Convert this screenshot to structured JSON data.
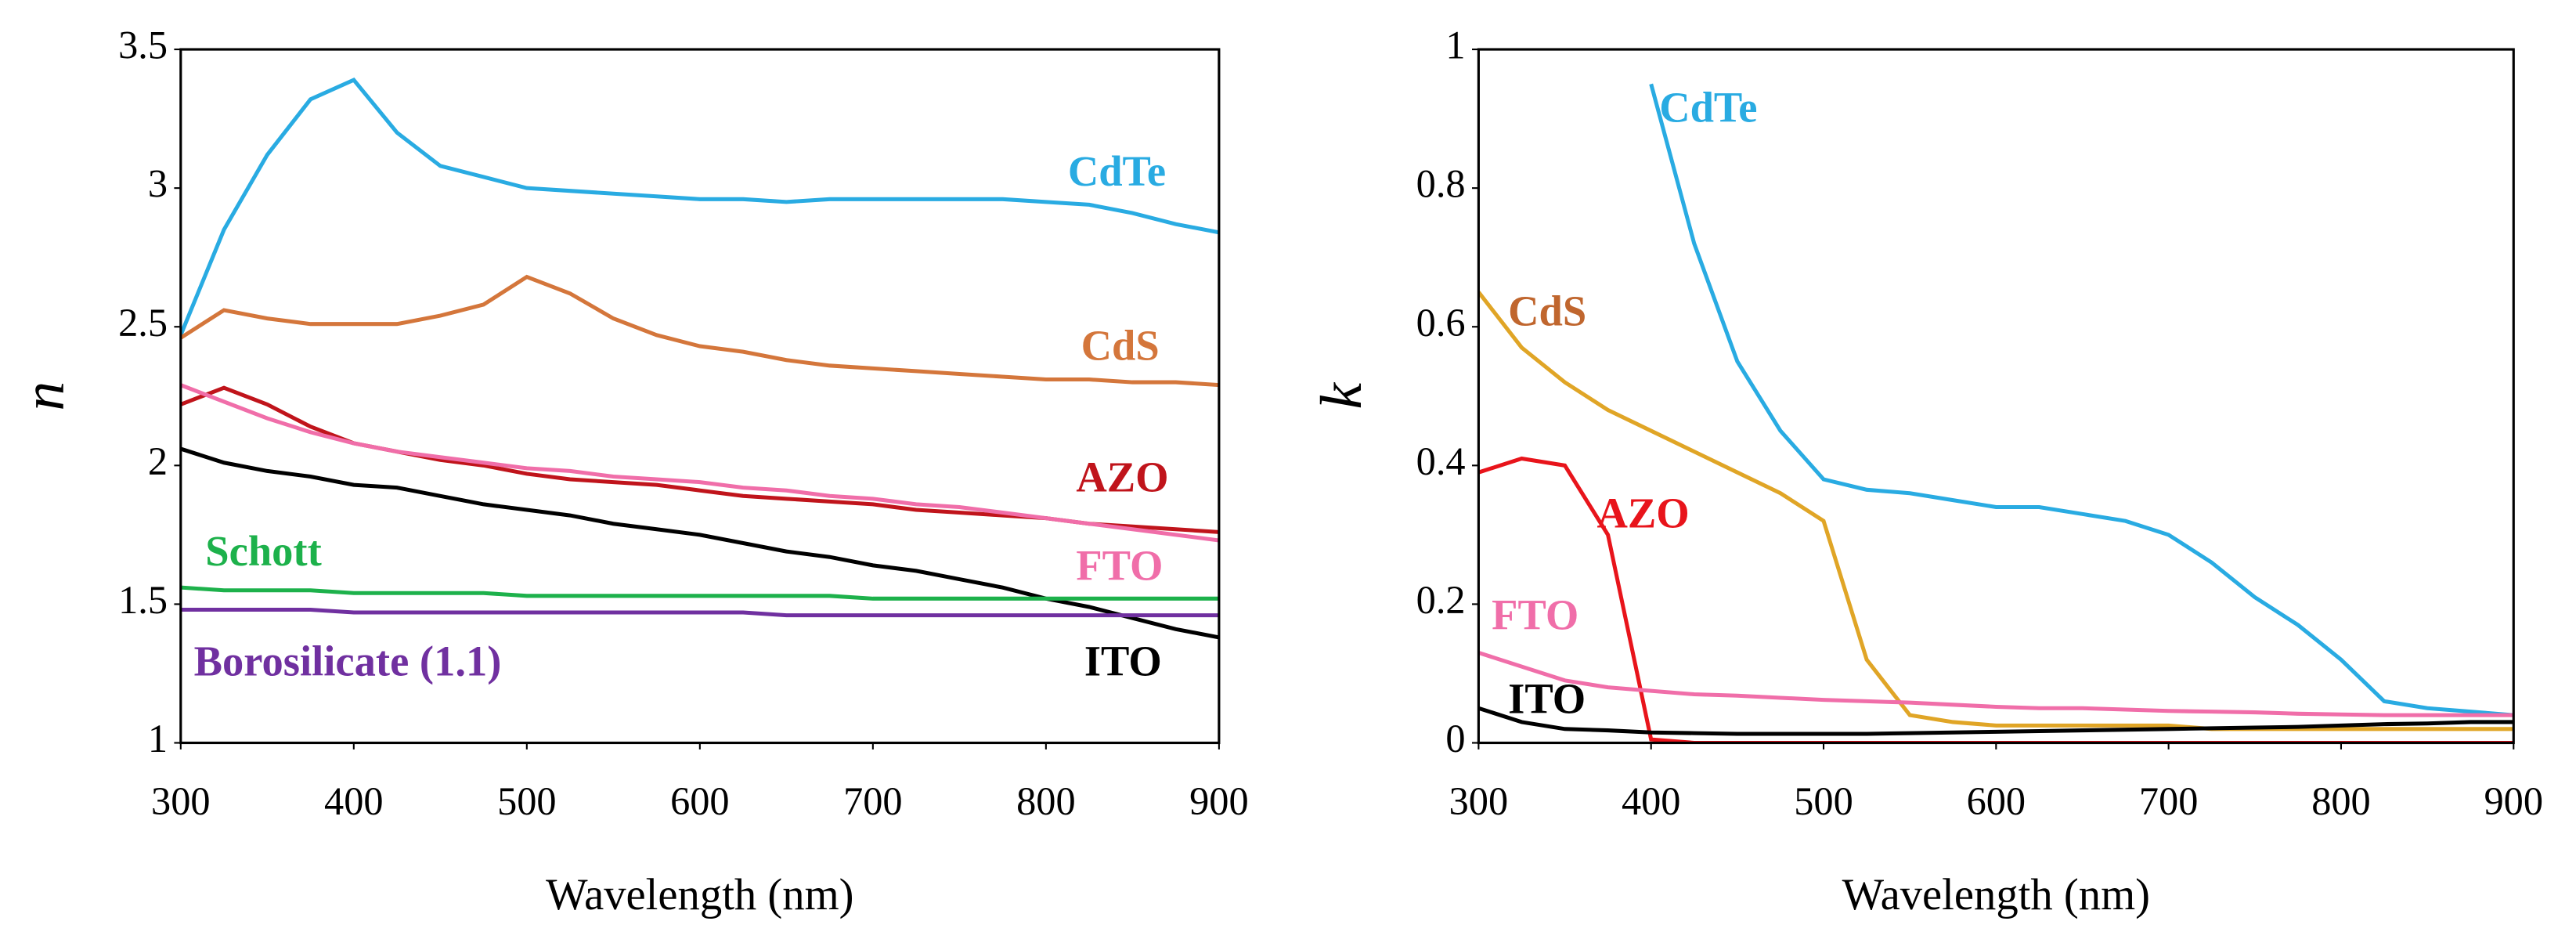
{
  "chart_data": [
    {
      "type": "line",
      "xlabel": "Wavelength (nm)",
      "ylabel": "n",
      "xlim": [
        300,
        900
      ],
      "xticks": [
        300,
        400,
        500,
        600,
        700,
        800,
        900
      ],
      "ylim": [
        1,
        3.5
      ],
      "yticks": [
        1,
        1.5,
        2,
        2.5,
        3,
        3.5
      ],
      "x": [
        300,
        325,
        350,
        375,
        400,
        425,
        450,
        475,
        500,
        525,
        550,
        575,
        600,
        625,
        650,
        675,
        700,
        725,
        750,
        775,
        800,
        825,
        850,
        875,
        900
      ],
      "series": [
        {
          "name": "CdTe",
          "color": "#29abe2",
          "values": [
            2.47,
            2.85,
            3.12,
            3.32,
            3.39,
            3.2,
            3.08,
            3.04,
            3.0,
            2.99,
            2.98,
            2.97,
            2.96,
            2.96,
            2.95,
            2.96,
            2.96,
            2.96,
            2.96,
            2.96,
            2.95,
            2.94,
            2.91,
            2.87,
            2.84
          ]
        },
        {
          "name": "CdS",
          "color": "#d4763b",
          "values": [
            2.46,
            2.56,
            2.53,
            2.51,
            2.51,
            2.51,
            2.54,
            2.58,
            2.68,
            2.62,
            2.53,
            2.47,
            2.43,
            2.41,
            2.38,
            2.36,
            2.35,
            2.34,
            2.33,
            2.32,
            2.31,
            2.31,
            2.3,
            2.3,
            2.29
          ]
        },
        {
          "name": "AZO",
          "color": "#c0141b",
          "values": [
            2.22,
            2.28,
            2.22,
            2.14,
            2.08,
            2.05,
            2.02,
            2.0,
            1.97,
            1.95,
            1.94,
            1.93,
            1.91,
            1.89,
            1.88,
            1.87,
            1.86,
            1.84,
            1.83,
            1.82,
            1.81,
            1.79,
            1.78,
            1.77,
            1.76
          ]
        },
        {
          "name": "FTO",
          "color": "#f06ea9",
          "values": [
            2.29,
            2.23,
            2.17,
            2.12,
            2.08,
            2.05,
            2.03,
            2.01,
            1.99,
            1.98,
            1.96,
            1.95,
            1.94,
            1.92,
            1.91,
            1.89,
            1.88,
            1.86,
            1.85,
            1.83,
            1.81,
            1.79,
            1.77,
            1.75,
            1.73
          ]
        },
        {
          "name": "ITO",
          "color": "#000000",
          "values": [
            2.06,
            2.01,
            1.98,
            1.96,
            1.93,
            1.92,
            1.89,
            1.86,
            1.84,
            1.82,
            1.79,
            1.77,
            1.75,
            1.72,
            1.69,
            1.67,
            1.64,
            1.62,
            1.59,
            1.56,
            1.52,
            1.49,
            1.45,
            1.41,
            1.38
          ]
        },
        {
          "name": "Schott",
          "color": "#1db14b",
          "values": [
            1.56,
            1.55,
            1.55,
            1.55,
            1.54,
            1.54,
            1.54,
            1.54,
            1.53,
            1.53,
            1.53,
            1.53,
            1.53,
            1.53,
            1.53,
            1.53,
            1.52,
            1.52,
            1.52,
            1.52,
            1.52,
            1.52,
            1.52,
            1.52,
            1.52
          ]
        },
        {
          "name": "Borosilicate (1.1)",
          "color": "#7030a0",
          "values": [
            1.48,
            1.48,
            1.48,
            1.48,
            1.47,
            1.47,
            1.47,
            1.47,
            1.47,
            1.47,
            1.47,
            1.47,
            1.47,
            1.47,
            1.46,
            1.46,
            1.46,
            1.46,
            1.46,
            1.46,
            1.46,
            1.46,
            1.46,
            1.46,
            1.46
          ]
        }
      ]
    },
    {
      "type": "line",
      "xlabel": "Wavelength (nm)",
      "ylabel": "k",
      "xlim": [
        300,
        900
      ],
      "xticks": [
        300,
        400,
        500,
        600,
        700,
        800,
        900
      ],
      "ylim": [
        0,
        1
      ],
      "yticks": [
        0,
        0.2,
        0.4,
        0.6,
        0.8,
        1
      ],
      "x": [
        300,
        325,
        350,
        375,
        400,
        425,
        450,
        475,
        500,
        525,
        550,
        575,
        600,
        625,
        650,
        675,
        700,
        725,
        750,
        775,
        800,
        825,
        850,
        875,
        900
      ],
      "series": [
        {
          "name": "CdTe",
          "color": "#29abe2",
          "values": [
            null,
            null,
            null,
            null,
            0.95,
            0.72,
            0.55,
            0.45,
            0.38,
            0.365,
            0.36,
            0.35,
            0.34,
            0.34,
            0.33,
            0.32,
            0.3,
            0.26,
            0.21,
            0.17,
            0.12,
            0.06,
            0.05,
            0.045,
            0.04
          ]
        },
        {
          "name": "CdS",
          "color": "#e0a526",
          "values": [
            0.65,
            0.57,
            0.52,
            0.48,
            0.45,
            0.42,
            0.39,
            0.36,
            0.32,
            0.12,
            0.04,
            0.03,
            0.025,
            0.025,
            0.025,
            0.025,
            0.025,
            0.02,
            0.02,
            0.02,
            0.02,
            0.02,
            0.02,
            0.02,
            0.02
          ]
        },
        {
          "name": "AZO",
          "color": "#e8141b",
          "values": [
            0.39,
            0.41,
            0.4,
            0.3,
            0.005,
            0,
            0,
            0,
            0,
            0,
            0,
            0,
            0,
            0,
            0,
            0,
            0,
            0,
            0,
            0,
            0,
            0,
            0,
            0,
            0
          ]
        },
        {
          "name": "FTO",
          "color": "#f06ea9",
          "values": [
            0.13,
            0.11,
            0.09,
            0.08,
            0.075,
            0.07,
            0.068,
            0.065,
            0.062,
            0.06,
            0.058,
            0.055,
            0.052,
            0.05,
            0.05,
            0.048,
            0.046,
            0.045,
            0.044,
            0.042,
            0.041,
            0.04,
            0.04,
            0.04,
            0.04
          ]
        },
        {
          "name": "ITO",
          "color": "#000000",
          "values": [
            0.05,
            0.03,
            0.02,
            0.018,
            0.015,
            0.014,
            0.013,
            0.013,
            0.013,
            0.013,
            0.014,
            0.015,
            0.016,
            0.017,
            0.018,
            0.019,
            0.02,
            0.021,
            0.022,
            0.023,
            0.025,
            0.027,
            0.028,
            0.03,
            0.03
          ]
        }
      ]
    }
  ]
}
